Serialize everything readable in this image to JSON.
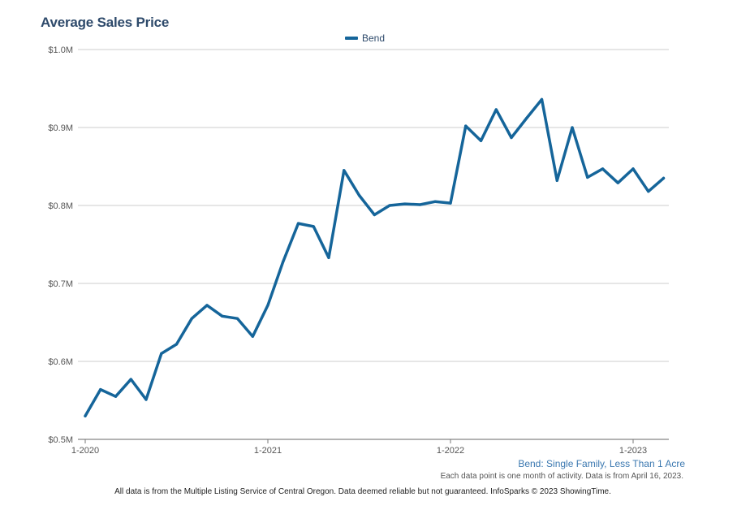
{
  "chart_data": {
    "type": "line",
    "title": "Average Sales Price",
    "legend": [
      "Bend"
    ],
    "series_color": "#15659a",
    "ylim": [
      0.5,
      1.0
    ],
    "yticks": [
      {
        "value": 1.0,
        "label": "$1.0M"
      },
      {
        "value": 0.9,
        "label": "$0.9M"
      },
      {
        "value": 0.8,
        "label": "$0.8M"
      },
      {
        "value": 0.7,
        "label": "$0.7M"
      },
      {
        "value": 0.6,
        "label": "$0.6M"
      },
      {
        "value": 0.5,
        "label": "$0.5M"
      }
    ],
    "xticks": [
      {
        "index": 0,
        "label": "1-2020"
      },
      {
        "index": 12,
        "label": "1-2021"
      },
      {
        "index": 24,
        "label": "1-2022"
      },
      {
        "index": 36,
        "label": "1-2023"
      }
    ],
    "series": [
      {
        "name": "Bend",
        "values": [
          0.53,
          0.564,
          0.555,
          0.577,
          0.551,
          0.61,
          0.622,
          0.655,
          0.672,
          0.658,
          0.655,
          0.632,
          0.672,
          0.728,
          0.777,
          0.773,
          0.733,
          0.845,
          0.813,
          0.788,
          0.8,
          0.802,
          0.801,
          0.805,
          0.803,
          0.902,
          0.883,
          0.923,
          0.887,
          0.912,
          0.936,
          0.832,
          0.9,
          0.836,
          0.847,
          0.829,
          0.847,
          0.818,
          0.835
        ]
      }
    ]
  },
  "caption": "Bend: Single Family, Less Than 1 Acre",
  "note": "Each data point is one month of activity. Data is from April 16, 2023.",
  "footer": "All data is from the Multiple Listing Service of Central Oregon. Data deemed reliable but not guaranteed. InfoSparks © 2023 ShowingTime."
}
